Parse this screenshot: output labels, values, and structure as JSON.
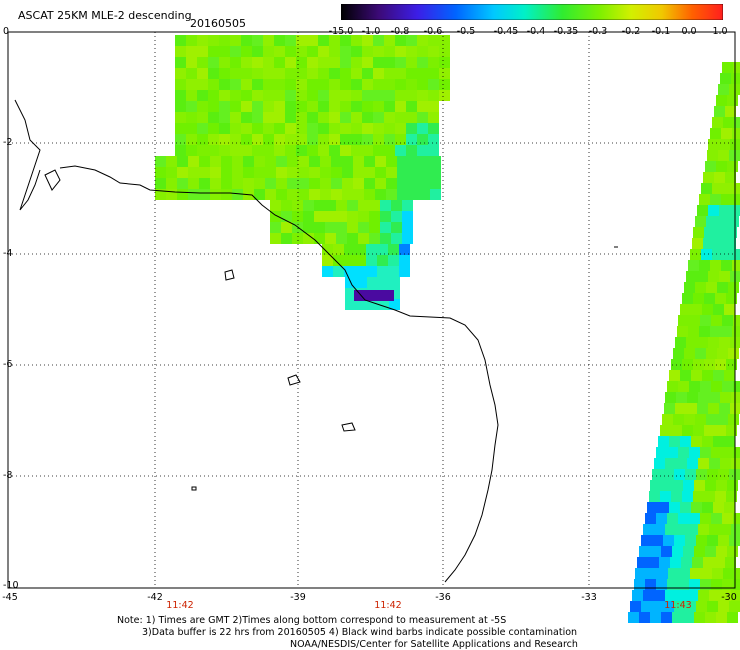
{
  "header": {
    "title": "ASCAT 25KM MLE-2 descending",
    "date": "20160505"
  },
  "colorbar": {
    "labels": [
      "-15.0",
      "-1.0",
      "-0.8",
      "-0.6",
      "-0.5",
      "-0.45",
      "-0.4",
      "-0.35",
      "-0.3",
      "-0.2",
      "-0.1",
      "0.0",
      "1.0"
    ],
    "colors": [
      "#000000",
      "#5a0aa0",
      "#3c1ee6",
      "#0064ff",
      "#00b4ff",
      "#00f0ff",
      "#20f0a0",
      "#30ec30",
      "#6cf000",
      "#c8f000",
      "#f0d000",
      "#ff6000",
      "#ff1e1e"
    ]
  },
  "axes": {
    "lat_labels": [
      "0",
      "-2",
      "-4",
      "-6",
      "-8",
      "-10"
    ],
    "lon_labels": [
      "-45",
      "-42",
      "-39",
      "-36",
      "-33",
      "-30"
    ]
  },
  "times": [
    "11:42",
    "11:42",
    "11:43"
  ],
  "notes": {
    "line1": "Note: 1) Times are GMT 2)Times along bottom correspond to measurement at -5S",
    "line2": "3)Data buffer is 22 hrs from 20160505 4) Black wind barbs indicate possible contamination",
    "line3": "NOAA/NESDIS/Center for Satellite Applications and Research"
  }
}
